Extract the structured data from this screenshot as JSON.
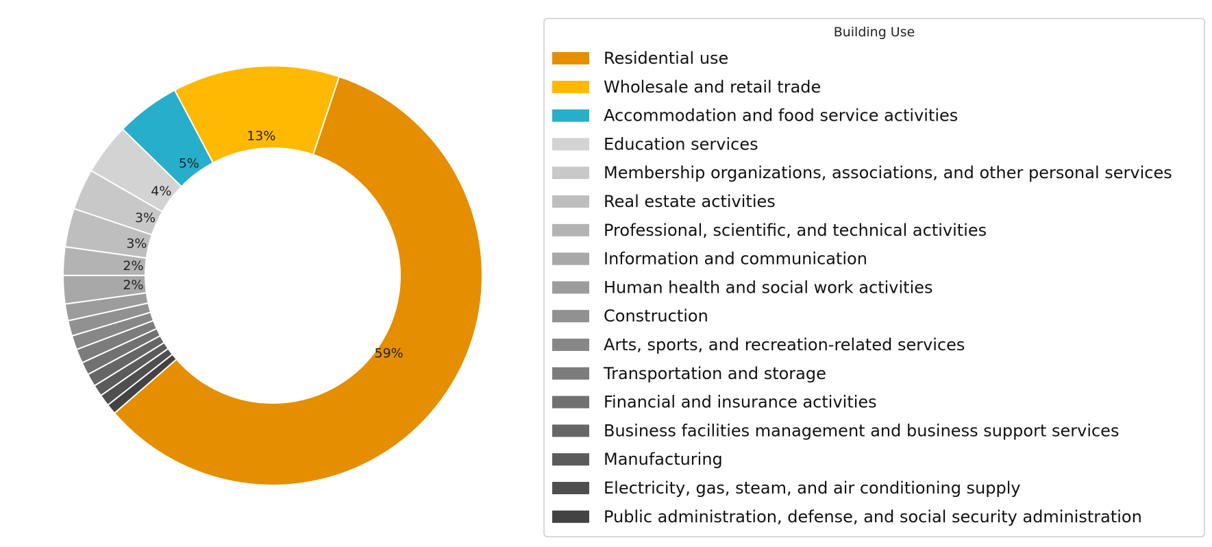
{
  "chart_data": {
    "type": "pie",
    "donut": true,
    "legend": {
      "title": "Building Use",
      "placement": "right"
    },
    "slices": [
      {
        "label": "Residential use",
        "value": 59.0,
        "pct_label": "59%",
        "color": "#E58E00"
      },
      {
        "label": "Wholesale and retail trade",
        "value": 13.0,
        "pct_label": "13%",
        "color": "#FFB900"
      },
      {
        "label": "Accommodation and food service activities",
        "value": 5.0,
        "pct_label": "5%",
        "color": "#27AECB"
      },
      {
        "label": "Education services",
        "value": 4.0,
        "pct_label": "4%",
        "color": "#D3D3D3"
      },
      {
        "label": "Membership organizations, associations, and other personal services",
        "value": 3.2,
        "pct_label": "3%",
        "color": "#C8C8C8"
      },
      {
        "label": "Real estate activities",
        "value": 3.0,
        "pct_label": "3%",
        "color": "#BEBEBE"
      },
      {
        "label": "Professional, scientific, and technical activities",
        "value": 2.2,
        "pct_label": "2%",
        "color": "#B3B3B3"
      },
      {
        "label": "Information and communication",
        "value": 2.2,
        "pct_label": "2%",
        "color": "#A8A8A8"
      },
      {
        "label": "Human health and social work activities",
        "value": 1.3,
        "pct_label": "",
        "color": "#9C9C9C"
      },
      {
        "label": "Construction",
        "value": 1.2,
        "pct_label": "",
        "color": "#919191"
      },
      {
        "label": "Arts, sports, and recreation-related services",
        "value": 1.1,
        "pct_label": "",
        "color": "#878787"
      },
      {
        "label": "Transportation and storage",
        "value": 1.1,
        "pct_label": "",
        "color": "#7C7C7C"
      },
      {
        "label": "Financial and insurance activities",
        "value": 1.0,
        "pct_label": "",
        "color": "#717171"
      },
      {
        "label": "Business facilities management and business support services",
        "value": 1.0,
        "pct_label": "",
        "color": "#666666"
      },
      {
        "label": "Manufacturing",
        "value": 0.9,
        "pct_label": "",
        "color": "#5B5B5B"
      },
      {
        "label": "Electricity, gas, steam, and air conditioning supply",
        "value": 0.9,
        "pct_label": "",
        "color": "#4F4F4F"
      },
      {
        "label": "Public administration, defense, and social security administration",
        "value": 0.8,
        "pct_label": "",
        "color": "#434343"
      }
    ]
  }
}
